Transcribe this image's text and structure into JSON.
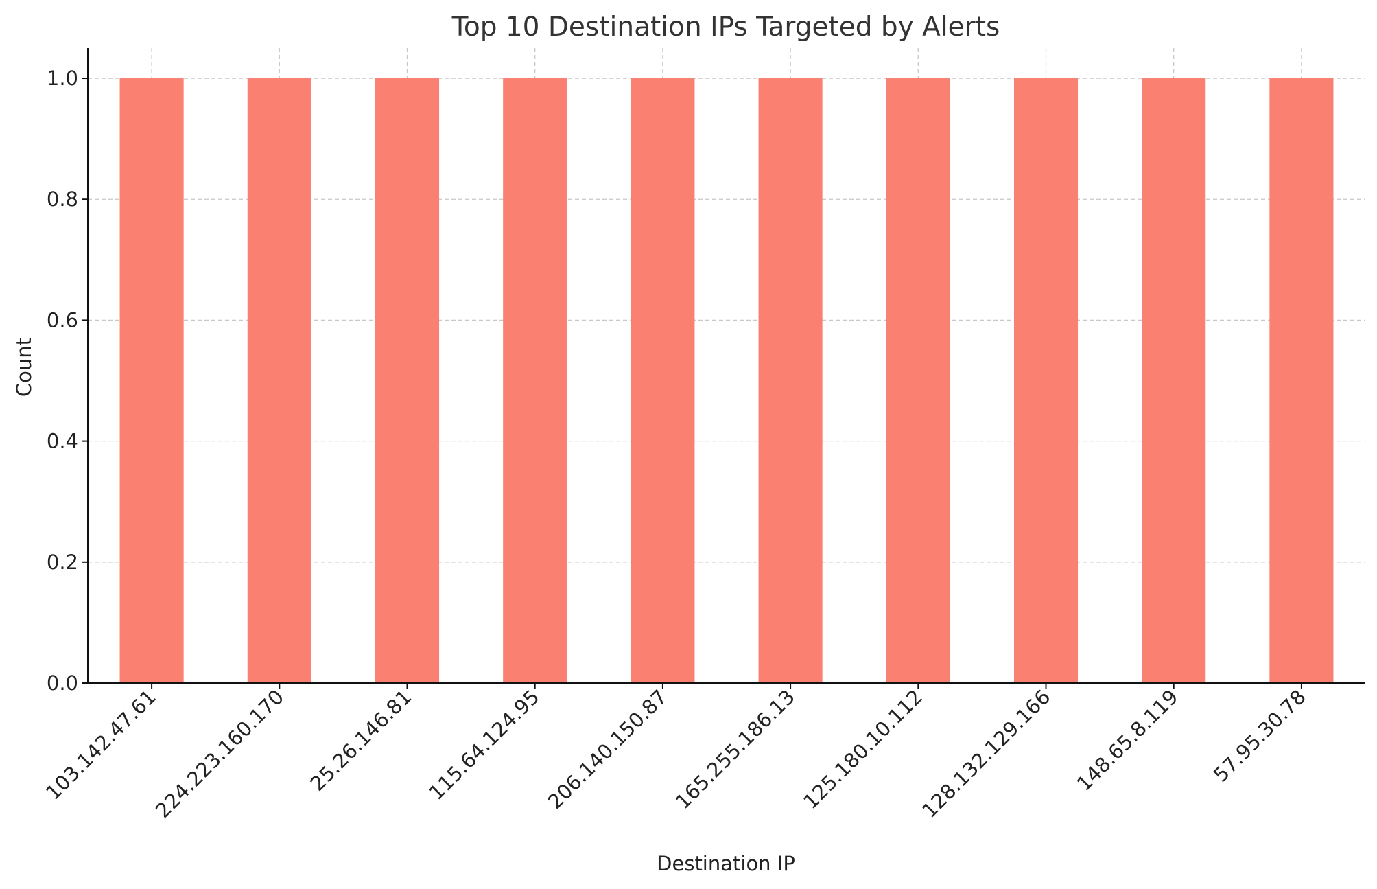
{
  "chart_data": {
    "type": "bar",
    "title": "Top 10 Destination IPs Targeted by Alerts",
    "xlabel": "Destination IP",
    "ylabel": "Count",
    "categories": [
      "103.142.47.61",
      "224.223.160.170",
      "25.26.146.81",
      "115.64.124.95",
      "206.140.150.87",
      "165.255.186.13",
      "125.180.10.112",
      "128.132.129.166",
      "148.65.8.119",
      "57.95.30.78"
    ],
    "values": [
      1,
      1,
      1,
      1,
      1,
      1,
      1,
      1,
      1,
      1
    ],
    "ylim": [
      0,
      1.05
    ],
    "yticks": [
      "0.0",
      "0.2",
      "0.4",
      "0.6",
      "0.8",
      "1.0"
    ],
    "grid": true,
    "bar_color": "#fa8072"
  }
}
